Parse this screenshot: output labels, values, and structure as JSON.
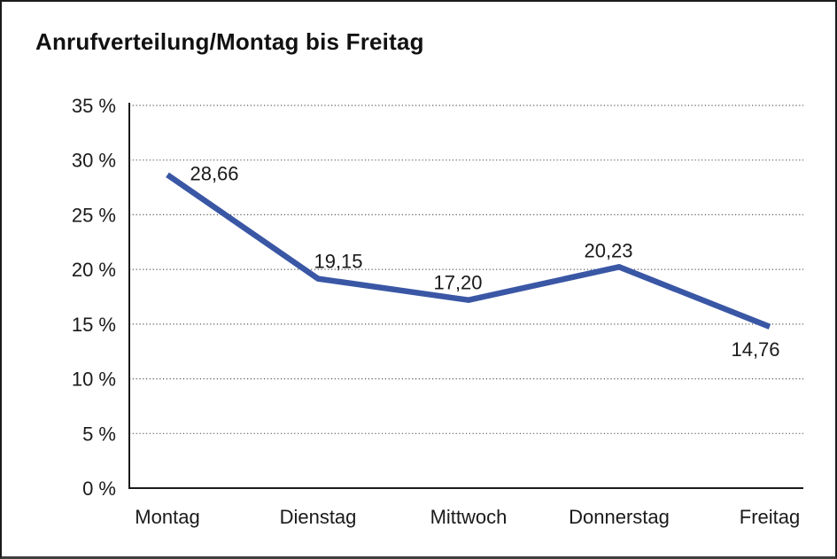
{
  "window": {
    "background": "#ffffff",
    "frame_border_color": "#1b1b1b"
  },
  "chart_data": {
    "type": "line",
    "title": "Anrufverteilung/Montag bis Freitag",
    "categories": [
      "Montag",
      "Dienstag",
      "Mittwoch",
      "Donnerstag",
      "Freitag"
    ],
    "series": [
      {
        "values": [
          28.66,
          19.15,
          17.2,
          20.23,
          14.76
        ],
        "data_labels": [
          "28,66",
          "19,15",
          "17,20",
          "20,23",
          "14,76"
        ],
        "color": "#3A57A5"
      }
    ],
    "xlabel": "",
    "ylabel": "",
    "ylim": [
      0,
      35
    ],
    "ytick_step": 5,
    "ytick_labels": [
      "0 %",
      "5 %",
      "10 %",
      "15 %",
      "20 %",
      "25 %",
      "30 %",
      "35 %"
    ],
    "grid": "horizontal-dotted",
    "legend": "none",
    "markers": "none"
  }
}
